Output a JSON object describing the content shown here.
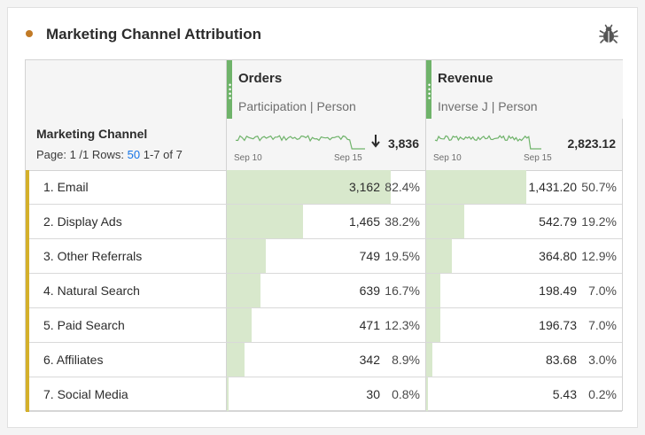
{
  "panel": {
    "title": "Marketing Channel Attribution",
    "dot_color": "#c17a26"
  },
  "columns": {
    "dimension": {
      "name": "Marketing Channel"
    },
    "metrics": [
      {
        "name": "Orders",
        "model": "Participation | Person",
        "total": "3,836",
        "sort": "descending",
        "spark_start": "Sep 10",
        "spark_end": "Sep 15",
        "max": 3836
      },
      {
        "name": "Revenue",
        "model": "Inverse J | Person",
        "total": "2,823.12",
        "spark_start": "Sep 10",
        "spark_end": "Sep 15",
        "max": 2823.12
      }
    ]
  },
  "pagination": {
    "page_label": "Page: 1 /1",
    "rows_label": "Rows:",
    "rows_value": "50",
    "range": "1-7 of 7"
  },
  "rows": [
    {
      "label": "1. Email",
      "orders": "3,162",
      "orders_pct": "82.4%",
      "orders_frac": 0.824,
      "revenue": "1,431.20",
      "revenue_pct": "50.7%",
      "revenue_frac": 0.507
    },
    {
      "label": "2. Display Ads",
      "orders": "1,465",
      "orders_pct": "38.2%",
      "orders_frac": 0.382,
      "revenue": "542.79",
      "revenue_pct": "19.2%",
      "revenue_frac": 0.192
    },
    {
      "label": "3. Other Referrals",
      "orders": "749",
      "orders_pct": "19.5%",
      "orders_frac": 0.195,
      "revenue": "364.80",
      "revenue_pct": "12.9%",
      "revenue_frac": 0.129
    },
    {
      "label": "4. Natural Search",
      "orders": "639",
      "orders_pct": "16.7%",
      "orders_frac": 0.167,
      "revenue": "198.49",
      "revenue_pct": "7.0%",
      "revenue_frac": 0.07
    },
    {
      "label": "5. Paid Search",
      "orders": "471",
      "orders_pct": "12.3%",
      "orders_frac": 0.123,
      "revenue": "196.73",
      "revenue_pct": "7.0%",
      "revenue_frac": 0.07
    },
    {
      "label": "6. Affiliates",
      "orders": "342",
      "orders_pct": "8.9%",
      "orders_frac": 0.089,
      "revenue": "83.68",
      "revenue_pct": "3.0%",
      "revenue_frac": 0.03
    },
    {
      "label": "7. Social Media",
      "orders": "30",
      "orders_pct": "0.8%",
      "orders_frac": 0.008,
      "revenue": "5.43",
      "revenue_pct": "0.2%",
      "revenue_frac": 0.002
    }
  ],
  "colors": {
    "metric_accent": "#6fb36a",
    "row_accent": "#d4b02b",
    "bar_fill": "#d8e8cc",
    "link": "#1473e6"
  },
  "icons": {
    "panel_action": "bug-icon",
    "sort": "arrow-down-icon"
  }
}
